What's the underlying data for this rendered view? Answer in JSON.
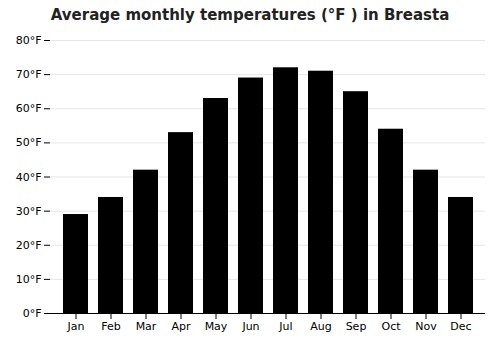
{
  "chart_data": {
    "type": "bar",
    "title": "Average monthly temperatures (°F ) in Breasta",
    "categories": [
      "Jan",
      "Feb",
      "Mar",
      "Apr",
      "May",
      "Jun",
      "Jul",
      "Aug",
      "Sep",
      "Oct",
      "Nov",
      "Dec"
    ],
    "values": [
      29,
      34,
      42,
      53,
      63,
      69,
      72,
      71,
      65,
      54,
      42,
      34
    ],
    "ylim": [
      0,
      80
    ],
    "yticks": [
      {
        "value": 0,
        "label": "0°F"
      },
      {
        "value": 10,
        "label": "10°F"
      },
      {
        "value": 20,
        "label": "20°F"
      },
      {
        "value": 30,
        "label": "30°F"
      },
      {
        "value": 40,
        "label": "40°F"
      },
      {
        "value": 50,
        "label": "50°F"
      },
      {
        "value": 60,
        "label": "60°F"
      },
      {
        "value": 70,
        "label": "70°F"
      },
      {
        "value": 80,
        "label": "80°F"
      }
    ],
    "grid": true
  }
}
